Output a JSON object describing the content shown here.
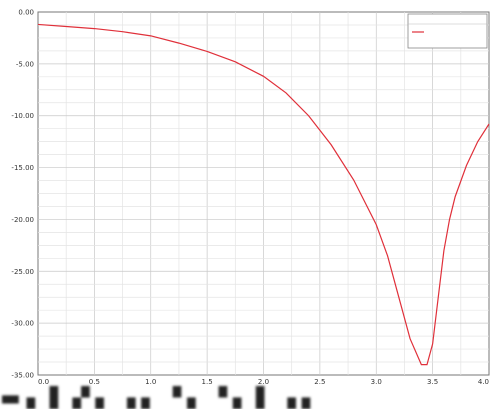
{
  "chart_data": {
    "type": "line",
    "title": "",
    "xlabel": "",
    "ylabel": "",
    "x_ticks": [
      "0.0",
      "0.5",
      "1.0",
      "1.5",
      "2.0",
      "2.5",
      "3.0",
      "3.5",
      "4.0"
    ],
    "y_ticks": [
      "0.00",
      "-5.00",
      "-10.00",
      "-15.00",
      "-20.00",
      "-25.00",
      "-30.00",
      "-35.00"
    ],
    "xlim": [
      0,
      4
    ],
    "ylim": [
      -35,
      0
    ],
    "grid": true,
    "legend_placement": "top-right",
    "legend": {
      "title": "",
      "series_label": "",
      "sub_label": ""
    },
    "series": [
      {
        "color": "#e0303a",
        "x": [
          0.0,
          0.25,
          0.5,
          0.75,
          1.0,
          1.25,
          1.5,
          1.75,
          2.0,
          2.2,
          2.4,
          2.6,
          2.8,
          3.0,
          3.1,
          3.2,
          3.3,
          3.4,
          3.45,
          3.5,
          3.55,
          3.6,
          3.65,
          3.7,
          3.8,
          3.9,
          4.0
        ],
        "y": [
          -1.2,
          -1.4,
          -1.6,
          -1.9,
          -2.3,
          -3.0,
          -3.8,
          -4.8,
          -6.2,
          -7.8,
          -10.0,
          -12.8,
          -16.2,
          -20.5,
          -23.5,
          -27.5,
          -31.5,
          -34.0,
          -34.0,
          -32.0,
          -27.5,
          -23.0,
          -20.0,
          -17.8,
          -14.8,
          -12.5,
          -10.8
        ]
      }
    ]
  }
}
